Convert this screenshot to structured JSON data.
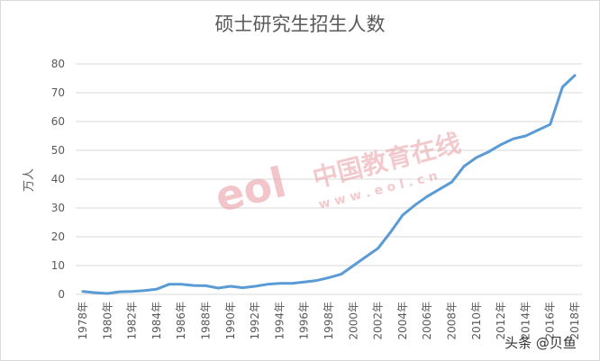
{
  "chart_data": {
    "type": "line",
    "title": "硕士研究生招生人数",
    "y_label": "万人",
    "categories": [
      "1978年",
      null,
      "1980年",
      null,
      "1982年",
      null,
      "1984年",
      null,
      "1986年",
      null,
      "1988年",
      null,
      "1990年",
      null,
      "1992年",
      null,
      "1994年",
      null,
      "1996年",
      null,
      "1998年",
      null,
      "2000年",
      null,
      "2002年",
      null,
      "2004年",
      null,
      "2006年",
      null,
      "2008年",
      null,
      "2010年",
      null,
      "2012年",
      null,
      "2014年",
      null,
      "2016年",
      null,
      "2018年"
    ],
    "series": [
      {
        "name": "硕士研究生招生人数",
        "color": "#5b9bd5",
        "values": [
          1,
          0.6,
          0.3,
          0.9,
          1,
          1.3,
          1.8,
          3.5,
          3.5,
          3.1,
          3,
          2.2,
          2.8,
          2.3,
          2.8,
          3.5,
          3.8,
          3.8,
          4.3,
          4.8,
          5.8,
          7,
          10,
          13,
          16,
          21.5,
          27.5,
          31,
          34,
          36.5,
          39,
          44.5,
          47.5,
          49.5,
          52,
          54,
          55,
          57,
          59,
          72,
          76
        ]
      }
    ],
    "ylim": [
      0,
      80
    ],
    "yticks": [
      0,
      10,
      20,
      30,
      40,
      50,
      60,
      70,
      80
    ],
    "grid": true,
    "watermarks": [
      "eol",
      "中国教育在线",
      "w w w . e o l . c n",
      "头条 @贝鱼"
    ]
  }
}
